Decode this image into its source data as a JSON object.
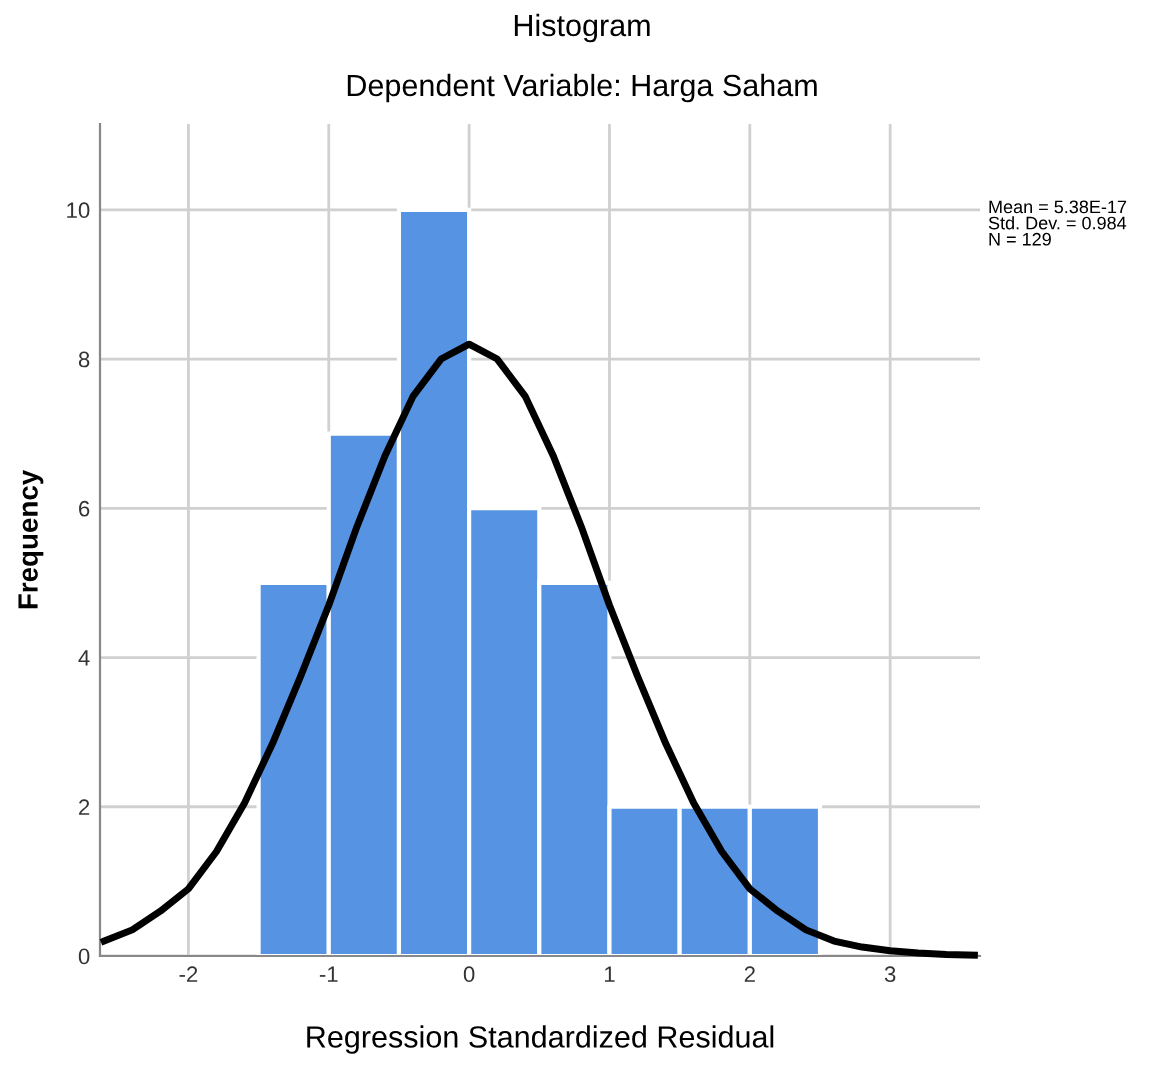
{
  "chart_data": {
    "type": "histogram",
    "title": "Histogram",
    "subtitle": "Dependent Variable: Harga Saham",
    "xlabel": "Regression Standardized Residual",
    "ylabel": "Frequency",
    "bins": [
      -1.5,
      -1.0,
      -0.5,
      0.0,
      0.5,
      1.0,
      1.5,
      2.0,
      2.5
    ],
    "values": [
      5,
      7,
      10,
      6,
      5,
      2,
      2,
      2
    ],
    "color": "#5694e3",
    "series": [
      {
        "type": "line",
        "color": "#000000",
        "x": [
          -2.6,
          -2.4,
          -2.2,
          -2.0,
          -1.8,
          -1.6,
          -1.4,
          -1.2,
          -1.0,
          -0.8,
          -0.6,
          -0.4,
          -0.2,
          0.0,
          0.2,
          0.4,
          0.6,
          0.8,
          1.0,
          1.2,
          1.4,
          1.6,
          1.8,
          2.0,
          2.2,
          2.4,
          2.6,
          2.8,
          3.0,
          3.2,
          3.4,
          3.6
        ],
        "values": [
          0.2,
          0.35,
          0.6,
          0.9,
          1.4,
          2.05,
          2.85,
          3.75,
          4.7,
          5.75,
          6.7,
          7.5,
          8.0,
          8.2,
          8.0,
          7.5,
          6.7,
          5.75,
          4.7,
          3.75,
          2.85,
          2.05,
          1.4,
          0.9,
          0.6,
          0.35,
          0.2,
          0.12,
          0.07,
          0.04,
          0.02,
          0.01
        ]
      }
    ],
    "xlim": [
      -2.63,
      3.64
    ],
    "ylim": [
      0,
      11.15
    ],
    "xticks": [
      -2,
      -1,
      0,
      1,
      2,
      3
    ],
    "yticks": [
      0,
      2,
      4,
      6,
      8,
      10
    ],
    "grid": true,
    "annotations": [
      "Mean = 5.38E-17\nStd. Dev. = 0.984\nN = 129"
    ]
  }
}
